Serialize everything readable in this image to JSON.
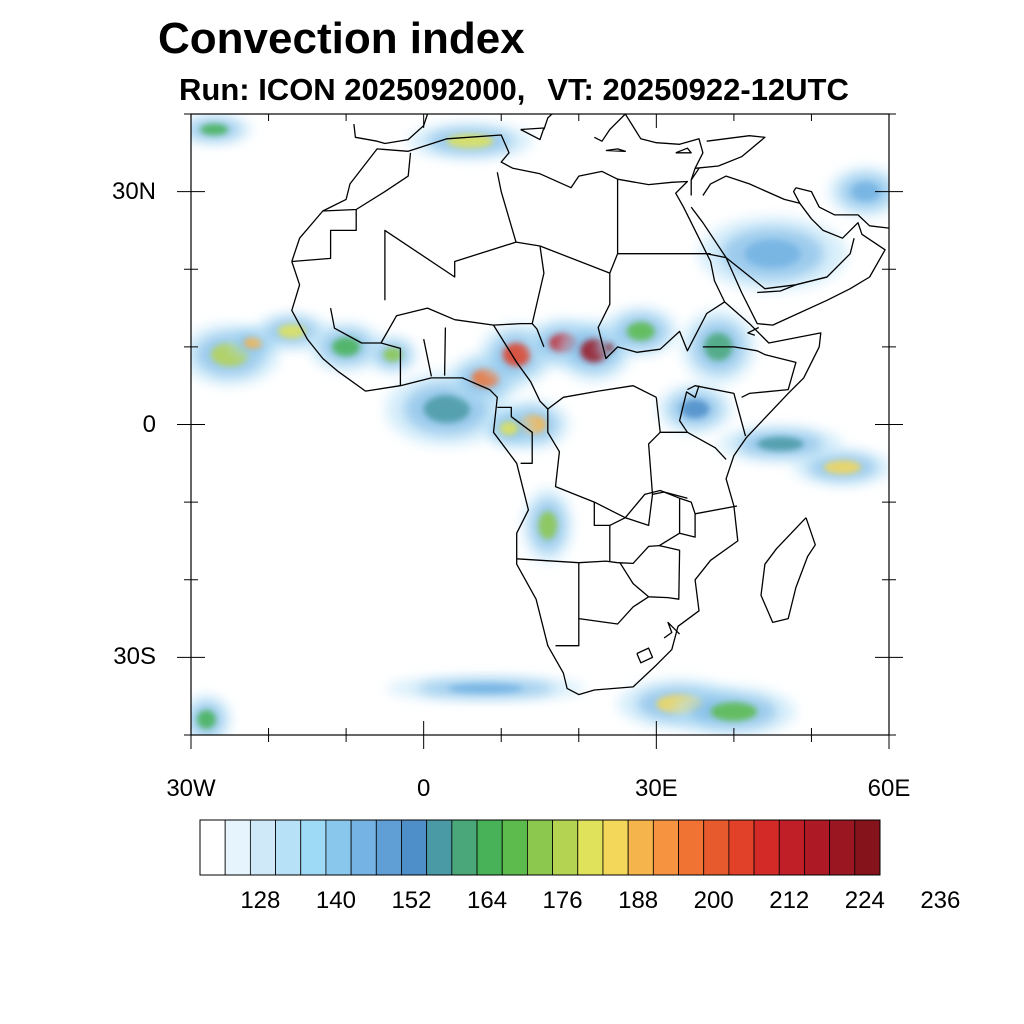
{
  "title": "Convection index",
  "subtitle": {
    "run": "Run: ICON 2025092000,",
    "vt": "VT: 20250922-12UTC"
  },
  "axes": {
    "lat_ticks": [
      {
        "label": "30N",
        "lat": 30
      },
      {
        "label": "0",
        "lat": 0
      },
      {
        "label": "30S",
        "lat": -30
      }
    ],
    "lon_ticks": [
      {
        "label": "30W",
        "lon": -30
      },
      {
        "label": "0",
        "lon": 0
      },
      {
        "label": "30E",
        "lon": 30
      },
      {
        "label": "60E",
        "lon": 60
      }
    ],
    "lat_range": [
      -40,
      40
    ],
    "lon_range": [
      -30,
      60
    ],
    "minor_lat_step": 10,
    "minor_lon_step": 10
  },
  "colorbar": {
    "colors": [
      "#ffffff",
      "#e6f5fd",
      "#cfe9f9",
      "#b7e1f7",
      "#9ed9f5",
      "#8ac7ec",
      "#74b3e3",
      "#5f9fd6",
      "#4f8fc9",
      "#4a9aa6",
      "#4aa77a",
      "#47b257",
      "#5cbb4c",
      "#8cc84e",
      "#b5d352",
      "#dfe25a",
      "#f3d75a",
      "#f6b54c",
      "#f59340",
      "#f07334",
      "#e75a2d",
      "#e04128",
      "#d42a27",
      "#c11f27",
      "#ad1a25",
      "#9a1722",
      "#84131c"
    ],
    "tick_labels": [
      "128",
      "140",
      "152",
      "164",
      "176",
      "188",
      "200",
      "212",
      "224",
      "236"
    ],
    "tick_boundaries": [
      3,
      6,
      9,
      12,
      15,
      18,
      21,
      24,
      27,
      30
    ]
  },
  "convection_cells": [
    {
      "lon": -25,
      "lat": 9,
      "value": 172,
      "rx": 4,
      "ry": 2.5
    },
    {
      "lon": -22,
      "lat": 10.5,
      "value": 184,
      "rx": 2,
      "ry": 1.2
    },
    {
      "lon": -17,
      "lat": 12,
      "value": 176,
      "rx": 3,
      "ry": 1.5
    },
    {
      "lon": -10,
      "lat": 10,
      "value": 160,
      "rx": 3,
      "ry": 2
    },
    {
      "lon": -4,
      "lat": 9,
      "value": 168,
      "rx": 2,
      "ry": 1.5
    },
    {
      "lon": 3,
      "lat": 2,
      "value": 150,
      "rx": 5,
      "ry": 3
    },
    {
      "lon": 8,
      "lat": 6,
      "value": 190,
      "rx": 3,
      "ry": 2
    },
    {
      "lon": 12,
      "lat": 9,
      "value": 200,
      "rx": 3,
      "ry": 2.5
    },
    {
      "lon": 18,
      "lat": 10.5,
      "value": 206,
      "rx": 3,
      "ry": 2
    },
    {
      "lon": 22,
      "lat": 9.5,
      "value": 214,
      "rx": 3,
      "ry": 2.5
    },
    {
      "lon": 24,
      "lat": 10,
      "value": 228,
      "rx": 1,
      "ry": 1
    },
    {
      "lon": 14,
      "lat": 0,
      "value": 184,
      "rx": 3,
      "ry": 2
    },
    {
      "lon": 11,
      "lat": -0.5,
      "value": 176,
      "rx": 2,
      "ry": 1.5
    },
    {
      "lon": 28,
      "lat": 12,
      "value": 164,
      "rx": 3,
      "ry": 2
    },
    {
      "lon": 38,
      "lat": 10,
      "value": 156,
      "rx": 3,
      "ry": 3
    },
    {
      "lon": 35,
      "lat": 2,
      "value": 148,
      "rx": 3,
      "ry": 2
    },
    {
      "lon": 54,
      "lat": -5.5,
      "value": 178,
      "rx": 4,
      "ry": 1.5
    },
    {
      "lon": 46,
      "lat": -2.5,
      "value": 150,
      "rx": 5,
      "ry": 1.5
    },
    {
      "lon": 16,
      "lat": -13,
      "value": 168,
      "rx": 2,
      "ry": 3
    },
    {
      "lon": 33,
      "lat": -36,
      "value": 180,
      "rx": 5,
      "ry": 2
    },
    {
      "lon": 40,
      "lat": -37,
      "value": 164,
      "rx": 5,
      "ry": 2
    },
    {
      "lon": 8,
      "lat": -34,
      "value": 140,
      "rx": 8,
      "ry": 1
    },
    {
      "lon": -28,
      "lat": -38,
      "value": 160,
      "rx": 2,
      "ry": 2
    },
    {
      "lon": 6,
      "lat": 36.5,
      "value": 176,
      "rx": 5,
      "ry": 1.5
    },
    {
      "lon": -27,
      "lat": 38,
      "value": 160,
      "rx": 3,
      "ry": 1.2
    },
    {
      "lon": 45,
      "lat": 22,
      "value": 138,
      "rx": 6,
      "ry": 3
    },
    {
      "lon": 57,
      "lat": 30,
      "value": 138,
      "rx": 3,
      "ry": 2
    }
  ]
}
